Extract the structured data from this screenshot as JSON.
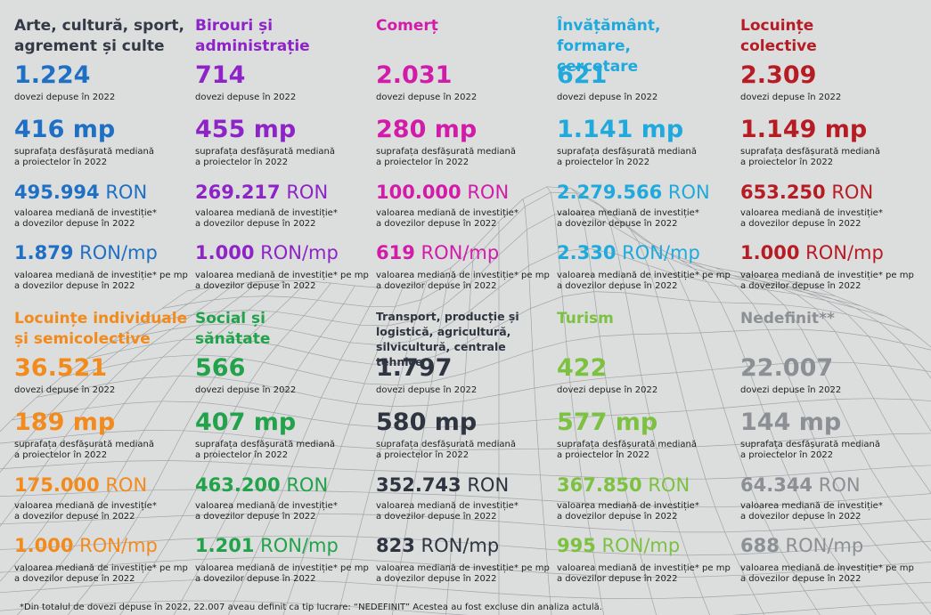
{
  "categories": [
    {
      "title": "Arte, cultură, sport,\nagrement și culte",
      "color": "#333a45",
      "stats": [
        {
          "value": "1.224",
          "unit": "",
          "caption": "dovezi depuse în 2022"
        },
        {
          "value": "416 mp",
          "unit": "",
          "caption": "suprafața desfășurată mediană\na proiectelor în 2022"
        },
        {
          "value": "495.994",
          "unit": " RON",
          "caption": "valoarea mediană de investiție*\na dovezilor depuse în 2022"
        },
        {
          "value": "1.879",
          "unit": " RON/mp",
          "caption": "valoarea mediană de investiție* pe mp\na dovezilor depuse în 2022"
        }
      ],
      "value_color": "#1f6fc4"
    },
    {
      "title": "Birouri și\nadministrație",
      "color": "#8e24c8",
      "value_color": "#8e24c8",
      "stats": [
        {
          "value": "714",
          "unit": "",
          "caption": "dovezi depuse în 2022"
        },
        {
          "value": "455 mp",
          "unit": "",
          "caption": "suprafața desfășurată mediană\na proiectelor în 2022"
        },
        {
          "value": "269.217",
          "unit": " RON",
          "caption": "valoarea mediană de investiție*\na dovezilor depuse în 2022"
        },
        {
          "value": "1.000",
          "unit": " RON/mp",
          "caption": "valoarea mediană de investiție* pe mp\na dovezilor depuse în 2022"
        }
      ]
    },
    {
      "title": "Comerț",
      "color": "#d21ca9",
      "value_color": "#d21ca9",
      "stats": [
        {
          "value": "2.031",
          "unit": "",
          "caption": "dovezi depuse în 2022"
        },
        {
          "value": "280 mp",
          "unit": "",
          "caption": "suprafața desfășurată mediană\na proiectelor în 2022"
        },
        {
          "value": "100.000",
          "unit": " RON",
          "caption": "valoarea mediană de investiție*\na dovezilor depuse în 2022"
        },
        {
          "value": "619",
          "unit": " RON/mp",
          "caption": "valoarea mediană de investiție* pe mp\na dovezilor depuse în 2022"
        }
      ]
    },
    {
      "title": "Învățământ, formare,\ncercetare",
      "color": "#1fa9dc",
      "value_color": "#1fa9dc",
      "stats": [
        {
          "value": "621",
          "unit": "",
          "caption": "dovezi depuse în 2022"
        },
        {
          "value": "1.141 mp",
          "unit": "",
          "caption": "suprafața desfășurată mediană\na proiectelor în 2022"
        },
        {
          "value": "2.279.566",
          "unit": " RON",
          "caption": "valoarea mediană de investiție*\na dovezilor depuse în 2022"
        },
        {
          "value": "2.330",
          "unit": " RON/mp",
          "caption": "valoarea mediană de investiție* pe mp\na dovezilor depuse în 2022"
        }
      ]
    },
    {
      "title": "Locuințe\ncolective",
      "color": "#b71c24",
      "value_color": "#b71c24",
      "stats": [
        {
          "value": "2.309",
          "unit": "",
          "caption": "dovezi depuse în 2022"
        },
        {
          "value": "1.149 mp",
          "unit": "",
          "caption": "suprafața desfășurată mediană\na proiectelor în 2022"
        },
        {
          "value": "653.250",
          "unit": " RON",
          "caption": "valoarea mediană de investiție*\na dovezilor depuse în 2022"
        },
        {
          "value": "1.000",
          "unit": " RON/mp",
          "caption": "valoarea mediană de investiție* pe mp\na dovezilor depuse în 2022"
        }
      ]
    },
    {
      "title": "Locuințe individuale\nși semicolective",
      "color": "#f28a1c",
      "value_color": "#f28a1c",
      "stats": [
        {
          "value": "36.521",
          "unit": "",
          "caption": "dovezi depuse în 2022"
        },
        {
          "value": "189 mp",
          "unit": "",
          "caption": "suprafața desfășurată mediană\na proiectelor în 2022"
        },
        {
          "value": "175.000",
          "unit": " RON",
          "caption": "valoarea mediană de investiție*\na dovezilor depuse în 2022"
        },
        {
          "value": "1.000",
          "unit": " RON/mp",
          "caption": "valoarea mediană de investiție* pe mp\na dovezilor depuse în 2022"
        }
      ]
    },
    {
      "title": "Social și\nsănătate",
      "color": "#22a24a",
      "value_color": "#22a24a",
      "stats": [
        {
          "value": "566",
          "unit": "",
          "caption": "dovezi depuse în 2022"
        },
        {
          "value": "407 mp",
          "unit": "",
          "caption": "suprafața desfășurată mediană\na proiectelor în 2022"
        },
        {
          "value": "463.200",
          "unit": " RON",
          "caption": "valoarea mediană de investiție*\na dovezilor depuse în 2022"
        },
        {
          "value": "1.201",
          "unit": " RON/mp",
          "caption": "valoarea mediană de investiție* pe mp\na dovezilor depuse în 2022"
        }
      ]
    },
    {
      "title": "Transport, producție și\nlogistică, agricultură,\nsilvicultură, centrale tehnice",
      "color": "#2f3540",
      "value_color": "#2f3540",
      "small_title": true,
      "stats": [
        {
          "value": "1.797",
          "unit": "",
          "caption": "dovezi depuse în 2022"
        },
        {
          "value": "580 mp",
          "unit": "",
          "caption": "suprafața desfășurată mediană\na proiectelor în 2022"
        },
        {
          "value": "352.743",
          "unit": " RON",
          "caption": "valoarea mediană de investiție*\na dovezilor depuse în 2022"
        },
        {
          "value": "823",
          "unit": " RON/mp",
          "caption": "valoarea mediană de investiție* pe mp\na dovezilor depuse în 2022"
        }
      ]
    },
    {
      "title": "Turism",
      "color": "#7cc142",
      "value_color": "#7cc142",
      "stats": [
        {
          "value": "422",
          "unit": "",
          "caption": "dovezi depuse în 2022"
        },
        {
          "value": "577 mp",
          "unit": "",
          "caption": "suprafața desfășurată mediană\na proiectelor în 2022"
        },
        {
          "value": "367.850",
          "unit": " RON",
          "caption": "valoarea mediană de investiție*\na dovezilor depuse în 2022"
        },
        {
          "value": "995",
          "unit": " RON/mp",
          "caption": "valoarea mediană de investiție* pe mp\na dovezilor depuse în 2022"
        }
      ]
    },
    {
      "title": "Nedefinit**",
      "color": "#8c8f94",
      "value_color": "#8c8f94",
      "stats": [
        {
          "value": "22.007",
          "unit": "",
          "caption": "dovezi depuse în 2022"
        },
        {
          "value": "144 mp",
          "unit": "",
          "caption": "suprafața desfășurată mediană\na proiectelor în 2022"
        },
        {
          "value": "64.344",
          "unit": " RON",
          "caption": "valoarea mediană de investiție*\na dovezilor depuse în 2022"
        },
        {
          "value": "688",
          "unit": " RON/mp",
          "caption": "valoarea mediană de investiție* pe mp\na dovezilor depuse în 2022"
        }
      ]
    }
  ],
  "footnote": "*Din totalul de dovezi depuse în 2022, 22.007 aveau definit ca tip lucrare: “NEDEFINIT” Acestea au fost excluse din analiza actulă."
}
